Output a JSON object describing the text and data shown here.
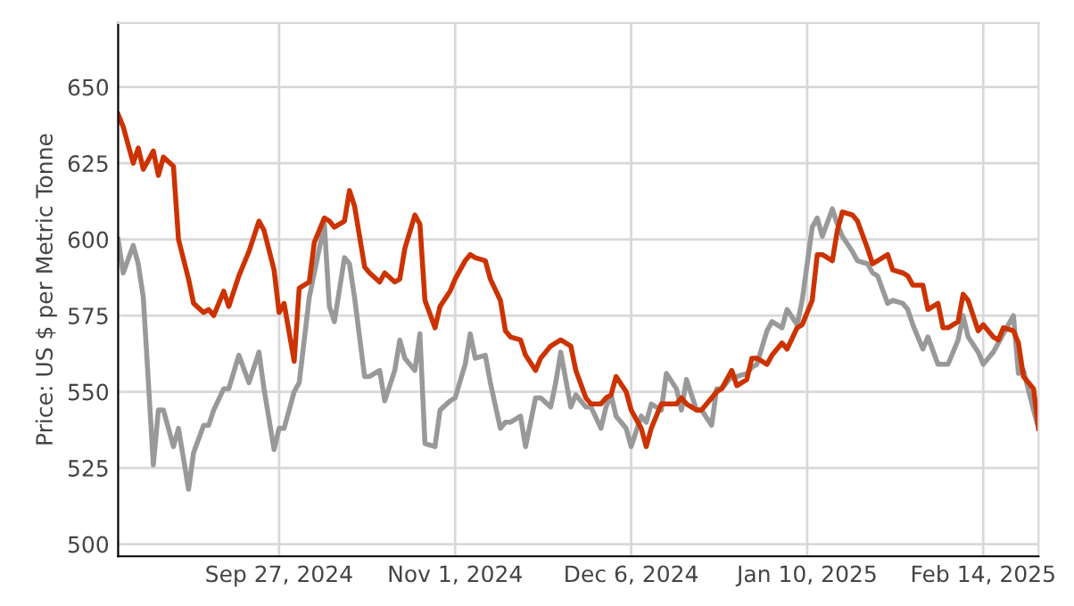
{
  "chart_data": {
    "type": "line",
    "ylabel": "Price: US $ per Metric Tonne",
    "x": [
      "2024-08-26",
      "2024-08-27",
      "2024-08-29",
      "2024-08-30",
      "2024-08-31",
      "2024-09-02",
      "2024-09-03",
      "2024-09-04",
      "2024-09-06",
      "2024-09-07",
      "2024-09-09",
      "2024-09-10",
      "2024-09-12",
      "2024-09-13",
      "2024-09-14",
      "2024-09-16",
      "2024-09-17",
      "2024-09-19",
      "2024-09-21",
      "2024-09-23",
      "2024-09-24",
      "2024-09-26",
      "2024-09-27",
      "2024-09-28",
      "2024-09-30",
      "2024-10-01",
      "2024-10-03",
      "2024-10-04",
      "2024-10-06",
      "2024-10-07",
      "2024-10-08",
      "2024-10-10",
      "2024-10-11",
      "2024-10-12",
      "2024-10-14",
      "2024-10-15",
      "2024-10-17",
      "2024-10-18",
      "2024-10-20",
      "2024-10-21",
      "2024-10-22",
      "2024-10-24",
      "2024-10-25",
      "2024-10-26",
      "2024-10-28",
      "2024-10-29",
      "2024-10-31",
      "2024-11-01",
      "2024-11-03",
      "2024-11-04",
      "2024-11-05",
      "2024-11-07",
      "2024-11-08",
      "2024-11-10",
      "2024-11-11",
      "2024-11-12",
      "2024-11-14",
      "2024-11-15",
      "2024-11-17",
      "2024-11-18",
      "2024-11-20",
      "2024-11-21",
      "2024-11-22",
      "2024-11-24",
      "2024-11-25",
      "2024-11-27",
      "2024-11-28",
      "2024-11-30",
      "2024-12-01",
      "2024-12-02",
      "2024-12-03",
      "2024-12-05",
      "2024-12-06",
      "2024-12-08",
      "2024-12-09",
      "2024-12-10",
      "2024-12-12",
      "2024-12-13",
      "2024-12-15",
      "2024-12-16",
      "2024-12-17",
      "2024-12-19",
      "2024-12-20",
      "2024-12-22",
      "2024-12-23",
      "2024-12-24",
      "2024-12-26",
      "2024-12-27",
      "2024-12-29",
      "2024-12-30",
      "2024-12-31",
      "2025-01-02",
      "2025-01-03",
      "2025-01-05",
      "2025-01-06",
      "2025-01-08",
      "2025-01-09",
      "2025-01-11",
      "2025-01-12",
      "2025-01-13",
      "2025-01-15",
      "2025-01-16",
      "2025-01-17",
      "2025-01-19",
      "2025-01-20",
      "2025-01-22",
      "2025-01-23",
      "2025-01-24",
      "2025-01-26",
      "2025-01-27",
      "2025-01-29",
      "2025-01-30",
      "2025-01-31",
      "2025-02-02",
      "2025-02-03",
      "2025-02-05",
      "2025-02-06",
      "2025-02-07",
      "2025-02-09",
      "2025-02-10",
      "2025-02-11",
      "2025-02-13",
      "2025-02-14",
      "2025-02-16",
      "2025-02-17",
      "2025-02-18",
      "2025-02-20",
      "2025-02-21",
      "2025-02-22",
      "2025-02-24",
      "2025-02-25"
    ],
    "series": [
      {
        "color": "#999999",
        "values": [
          600,
          589,
          598,
          592,
          581,
          526,
          544,
          544,
          532,
          538,
          518,
          530,
          539,
          539,
          544,
          551,
          551,
          562,
          553,
          563,
          551,
          531,
          538,
          538,
          550,
          553,
          581,
          589,
          605,
          578,
          573,
          594,
          592,
          581,
          555,
          555,
          557,
          547,
          557,
          567,
          561,
          557,
          569,
          533,
          532,
          544,
          547,
          548,
          559,
          569,
          561,
          562,
          553,
          538,
          540,
          540,
          542,
          532,
          548,
          548,
          545,
          553,
          563,
          545,
          549,
          545,
          545,
          538,
          545,
          549,
          542,
          538,
          532,
          542,
          540,
          546,
          544,
          556,
          551,
          544,
          554,
          544,
          544,
          539,
          551,
          551,
          555,
          555,
          556,
          558,
          559,
          570,
          573,
          571,
          577,
          572,
          580,
          604,
          607,
          601,
          610,
          605,
          601,
          596,
          593,
          592,
          589,
          588,
          579,
          580,
          579,
          577,
          572,
          564,
          568,
          559,
          559,
          559,
          567,
          575,
          568,
          563,
          559,
          563,
          566,
          569,
          575,
          556,
          557,
          544,
          538
        ]
      },
      {
        "color": "#cc3300",
        "values": [
          641,
          637,
          625,
          630,
          623,
          629,
          621,
          627,
          624,
          600,
          587,
          579,
          576,
          577,
          575,
          583,
          578,
          588,
          596,
          606,
          603,
          590,
          576,
          579,
          560,
          584,
          586,
          599,
          607,
          606,
          604,
          606,
          616,
          611,
          591,
          589,
          586,
          589,
          586,
          587,
          597,
          608,
          605,
          580,
          571,
          578,
          583,
          587,
          593,
          595,
          594,
          593,
          587,
          580,
          570,
          568,
          567,
          562,
          557,
          561,
          565,
          566,
          567,
          565,
          557,
          548,
          546,
          546,
          548,
          549,
          555,
          550,
          544,
          538,
          532,
          538,
          546,
          546,
          546,
          548,
          546,
          544,
          544,
          548,
          550,
          551,
          557,
          552,
          554,
          561,
          561,
          559,
          562,
          566,
          564,
          571,
          572,
          580,
          595,
          595,
          593,
          603,
          609,
          608,
          606,
          597,
          592,
          593,
          595,
          590,
          589,
          588,
          585,
          585,
          577,
          579,
          571,
          571,
          573,
          582,
          580,
          570,
          572,
          568,
          567,
          571,
          570,
          566,
          555,
          551,
          538
        ]
      }
    ],
    "xlim": [
      "2024-08-26",
      "2025-02-25"
    ],
    "xticks": [
      {
        "value": "2024-09-27",
        "label": "Sep 27, 2024"
      },
      {
        "value": "2024-11-01",
        "label": "Nov 1, 2024"
      },
      {
        "value": "2024-12-06",
        "label": "Dec 6, 2024"
      },
      {
        "value": "2025-01-10",
        "label": "Jan 10, 2025"
      },
      {
        "value": "2025-02-14",
        "label": "Feb 14, 2025"
      }
    ],
    "ylim": [
      496,
      671
    ],
    "yticks": [
      500,
      525,
      550,
      575,
      600,
      625,
      650
    ],
    "grid": true,
    "marker": "none",
    "line_style": "solid"
  }
}
